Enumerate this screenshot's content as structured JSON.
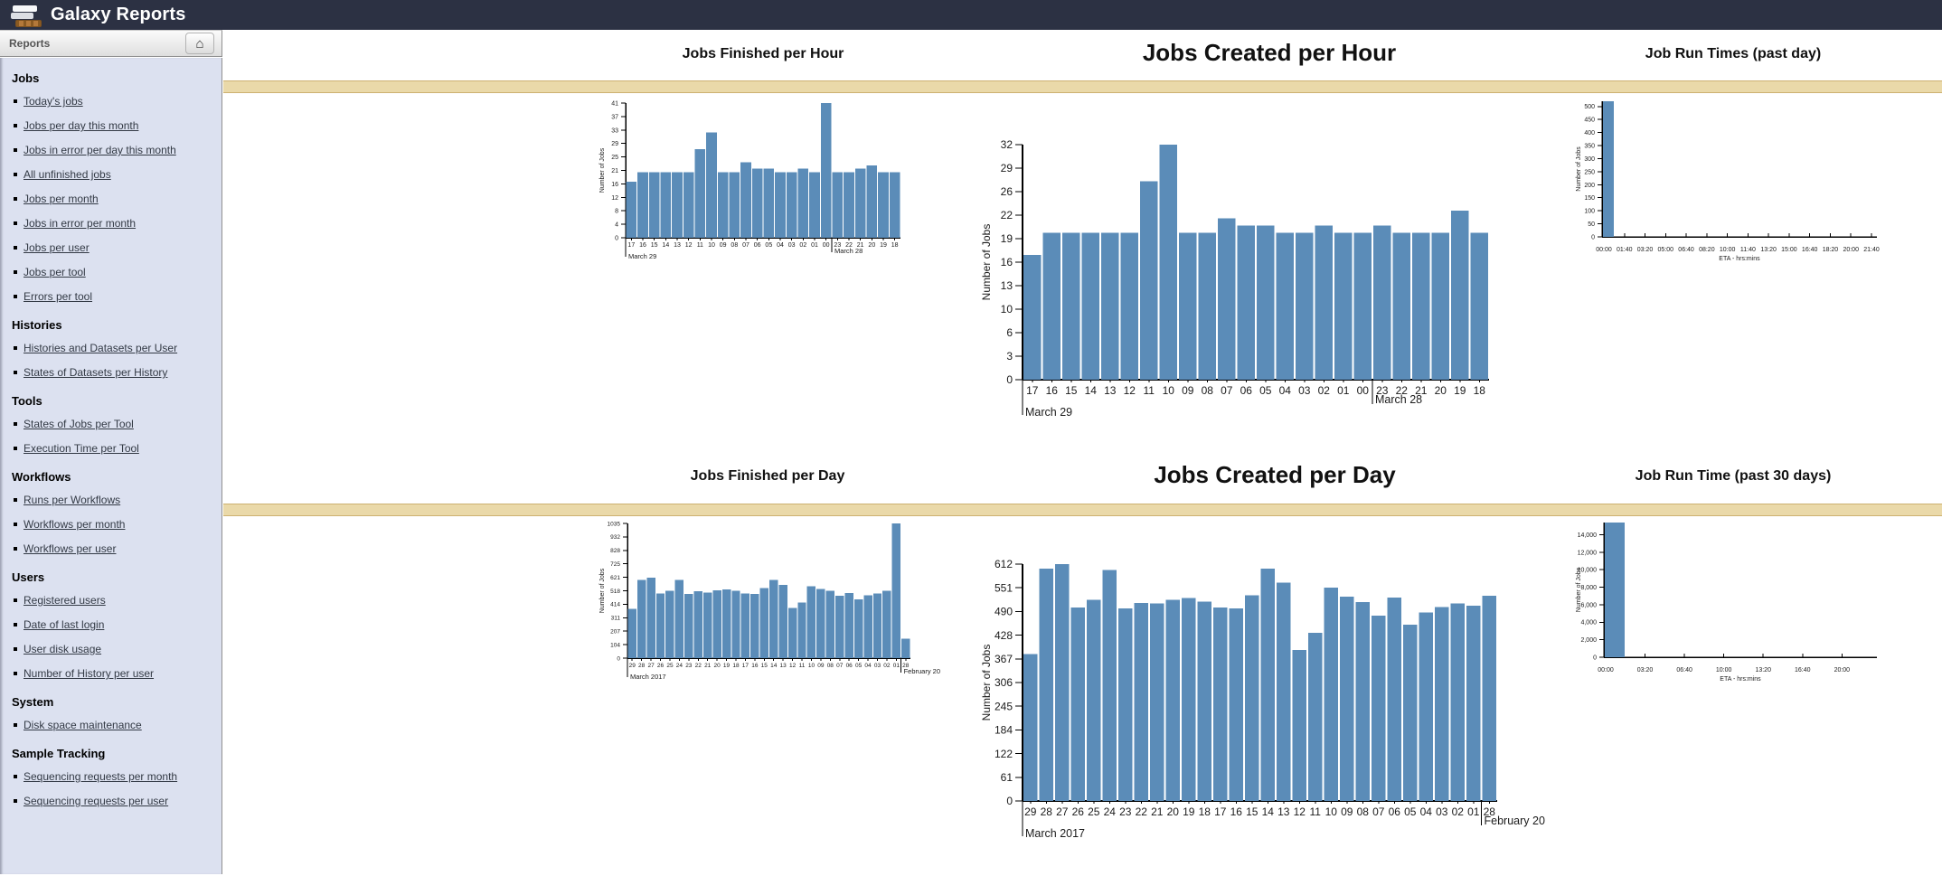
{
  "masthead": {
    "title": "Galaxy Reports"
  },
  "panel": {
    "title": "Reports",
    "home_icon": "home"
  },
  "sidebar": {
    "sections": [
      {
        "title": "Jobs",
        "items": [
          "Today's jobs",
          "Jobs per day this month",
          "Jobs in error per day this month",
          "All unfinished jobs",
          "Jobs per month",
          "Jobs in error per month",
          "Jobs per user",
          "Jobs per tool",
          "Errors per tool"
        ]
      },
      {
        "title": "Histories",
        "items": [
          "Histories and Datasets per User",
          "States of Datasets per History"
        ]
      },
      {
        "title": "Tools",
        "items": [
          "States of Jobs per Tool",
          "Execution Time per Tool"
        ]
      },
      {
        "title": "Workflows",
        "items": [
          "Runs per Workflows",
          "Workflows per month",
          "Workflows per user"
        ]
      },
      {
        "title": "Users",
        "items": [
          "Registered users",
          "Date of last login",
          "User disk usage",
          "Number of History per user"
        ]
      },
      {
        "title": "System",
        "items": [
          "Disk space maintenance"
        ]
      },
      {
        "title": "Sample Tracking",
        "items": [
          "Sequencing requests per month",
          "Sequencing requests per user"
        ]
      }
    ]
  },
  "colors": {
    "masthead_bg": "#2c3143",
    "band_bg": "#ead9a9",
    "band_border": "#cdb171",
    "bar_fill": "#5b8cb8",
    "sidebar_bg": "#dce1f0"
  },
  "chart_data": [
    {
      "id": "jobs-finished-per-hour",
      "type": "bar",
      "title": "Jobs Finished per Hour",
      "ylabel": "Number of Jobs",
      "xlabel": "",
      "categories": [
        "17",
        "16",
        "15",
        "14",
        "13",
        "12",
        "11",
        "10",
        "09",
        "08",
        "07",
        "06",
        "05",
        "04",
        "03",
        "02",
        "01",
        "00",
        "23",
        "22",
        "21",
        "20",
        "19",
        "18"
      ],
      "values": [
        17,
        20,
        20,
        20,
        20,
        20,
        27,
        32,
        20,
        20,
        23,
        21,
        21,
        20,
        20,
        21,
        20,
        41,
        20,
        20,
        21,
        22,
        20,
        20
      ],
      "ymax": 41,
      "ytick_labels": [
        "0",
        "4",
        "8",
        "12",
        "16",
        "21",
        "25",
        "29",
        "33",
        "37",
        "41"
      ],
      "annotations": [
        {
          "index": 0,
          "label": "March 29"
        },
        {
          "index": 18,
          "label": "March 28"
        }
      ]
    },
    {
      "id": "jobs-created-per-hour",
      "type": "bar",
      "title": "Jobs Created per Hour",
      "ylabel": "Number of Jobs",
      "xlabel": "",
      "categories": [
        "17",
        "16",
        "15",
        "14",
        "13",
        "12",
        "11",
        "10",
        "09",
        "08",
        "07",
        "06",
        "05",
        "04",
        "03",
        "02",
        "01",
        "00",
        "23",
        "22",
        "21",
        "20",
        "19",
        "18"
      ],
      "values": [
        17,
        20,
        20,
        20,
        20,
        20,
        27,
        32,
        20,
        20,
        22,
        21,
        21,
        20,
        20,
        21,
        20,
        20,
        21,
        20,
        20,
        20,
        23,
        20
      ],
      "ymax": 32,
      "ytick_labels": [
        "0",
        "3",
        "6",
        "10",
        "13",
        "16",
        "19",
        "22",
        "26",
        "29",
        "32"
      ],
      "annotations": [
        {
          "index": 0,
          "label": "March 29"
        },
        {
          "index": 18,
          "label": "March 28"
        }
      ]
    },
    {
      "id": "job-run-times-past-day",
      "type": "bar",
      "title": "Job Run Times (past day)",
      "ylabel": "Number of Jobs",
      "xlabel": "ETA - hrs:mins",
      "categories": [
        "00:00",
        "01:40",
        "03:20",
        "05:00",
        "06:40",
        "08:20",
        "10:00",
        "11:40",
        "13:20",
        "15:00",
        "16:40",
        "18:20",
        "20:00",
        "21:40"
      ],
      "values": [
        520
      ],
      "ymax": 520,
      "ytick_labels": [
        "0",
        "50",
        "100",
        "150",
        "200",
        "250",
        "300",
        "350",
        "400",
        "450",
        "500"
      ],
      "ytick_values": [
        0,
        50,
        100,
        150,
        200,
        250,
        300,
        350,
        400,
        450,
        500
      ],
      "annotations": []
    },
    {
      "id": "jobs-finished-per-day",
      "type": "bar",
      "title": "Jobs Finished per Day",
      "ylabel": "Number of Jobs",
      "xlabel": "",
      "categories": [
        "29",
        "28",
        "27",
        "26",
        "25",
        "24",
        "23",
        "22",
        "21",
        "20",
        "19",
        "18",
        "17",
        "16",
        "15",
        "14",
        "13",
        "12",
        "11",
        "10",
        "09",
        "08",
        "07",
        "06",
        "05",
        "04",
        "03",
        "02",
        "01",
        "28"
      ],
      "values": [
        379,
        600,
        617,
        497,
        518,
        600,
        492,
        513,
        504,
        522,
        529,
        518,
        497,
        492,
        538,
        600,
        561,
        386,
        427,
        552,
        533,
        518,
        478,
        501,
        450,
        483,
        497,
        518,
        1035,
        150
      ],
      "ymax": 1035,
      "ytick_labels": [
        "0",
        "104",
        "207",
        "311",
        "414",
        "518",
        "621",
        "725",
        "828",
        "932",
        "1035"
      ],
      "annotations": [
        {
          "index": 0,
          "label": "March 2017"
        },
        {
          "index": 29,
          "label": "February 20"
        }
      ]
    },
    {
      "id": "jobs-created-per-day",
      "type": "bar",
      "title": "Jobs Created per Day",
      "ylabel": "Number of Jobs",
      "xlabel": "",
      "categories": [
        "29",
        "28",
        "27",
        "26",
        "25",
        "24",
        "23",
        "22",
        "21",
        "20",
        "19",
        "18",
        "17",
        "16",
        "15",
        "14",
        "13",
        "12",
        "11",
        "10",
        "09",
        "08",
        "07",
        "06",
        "05",
        "04",
        "03",
        "02",
        "01",
        "28"
      ],
      "values": [
        380,
        600,
        612,
        500,
        520,
        597,
        497,
        511,
        510,
        520,
        524,
        515,
        500,
        497,
        531,
        600,
        564,
        390,
        434,
        551,
        528,
        514,
        479,
        525,
        455,
        487,
        501,
        510,
        504,
        530
      ],
      "ymax": 612,
      "ytick_labels": [
        "0",
        "61",
        "122",
        "184",
        "245",
        "306",
        "367",
        "428",
        "490",
        "551",
        "612"
      ],
      "annotations": [
        {
          "index": 0,
          "label": "March 2017"
        },
        {
          "index": 29,
          "label": "February 20"
        }
      ]
    },
    {
      "id": "job-run-time-past-30-days",
      "type": "bar",
      "title": "Job Run Time (past 30 days)",
      "ylabel": "Number of Jobs",
      "xlabel": "ETA - hrs:mins",
      "categories": [
        "00:00",
        "03:20",
        "06:40",
        "10:00",
        "13:20",
        "16:40",
        "20:00"
      ],
      "values": [
        15400
      ],
      "ymax": 15400,
      "ytick_labels": [
        "0",
        "2,000",
        "4,000",
        "6,000",
        "8,000",
        "10,000",
        "12,000",
        "14,000"
      ],
      "ytick_values": [
        0,
        2000,
        4000,
        6000,
        8000,
        10000,
        12000,
        14000
      ],
      "annotations": []
    }
  ]
}
